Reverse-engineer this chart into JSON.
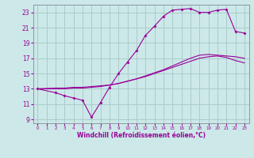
{
  "background_color": "#cce8e8",
  "line_color": "#990099",
  "grid_color": "#aacccc",
  "xlabel": "Windchill (Refroidissement éolien,°C)",
  "xlabel_color": "#990099",
  "ytick_color": "#990099",
  "xtick_color": "#990099",
  "xlim": [
    -0.5,
    23.5
  ],
  "ylim": [
    8.5,
    24.0
  ],
  "yticks": [
    9,
    11,
    13,
    15,
    17,
    19,
    21,
    23
  ],
  "xticks": [
    0,
    1,
    2,
    3,
    4,
    5,
    6,
    7,
    8,
    9,
    10,
    11,
    12,
    13,
    14,
    15,
    16,
    17,
    18,
    19,
    20,
    21,
    22,
    23
  ],
  "series1_x": [
    0,
    2,
    3,
    4,
    5,
    6,
    7,
    8,
    9,
    10,
    11,
    12,
    13,
    14,
    15,
    16,
    17,
    18,
    19,
    20,
    21,
    22,
    23
  ],
  "series1_y": [
    13.0,
    12.5,
    12.1,
    11.8,
    11.5,
    9.3,
    11.2,
    13.2,
    15.0,
    16.5,
    18.0,
    20.0,
    21.2,
    22.5,
    23.3,
    23.4,
    23.5,
    23.0,
    23.0,
    23.3,
    23.4,
    20.5,
    20.3
  ],
  "series2_x": [
    0,
    2,
    3,
    4,
    5,
    6,
    7,
    8,
    9,
    10,
    11,
    12,
    13,
    14,
    15,
    16,
    17,
    18,
    19,
    20,
    21,
    22,
    23
  ],
  "series2_y": [
    13.0,
    13.0,
    13.0,
    13.1,
    13.1,
    13.2,
    13.3,
    13.5,
    13.7,
    14.0,
    14.3,
    14.7,
    15.1,
    15.5,
    16.0,
    16.5,
    17.0,
    17.4,
    17.5,
    17.4,
    17.3,
    17.2,
    17.0
  ],
  "series3_x": [
    0,
    2,
    3,
    4,
    5,
    6,
    7,
    8,
    9,
    10,
    11,
    12,
    13,
    14,
    15,
    16,
    17,
    18,
    19,
    20,
    21,
    22,
    23
  ],
  "series3_y": [
    13.0,
    13.1,
    13.1,
    13.2,
    13.2,
    13.3,
    13.4,
    13.5,
    13.7,
    14.0,
    14.3,
    14.6,
    15.0,
    15.4,
    15.8,
    16.2,
    16.6,
    17.0,
    17.2,
    17.3,
    17.1,
    16.7,
    16.4
  ]
}
